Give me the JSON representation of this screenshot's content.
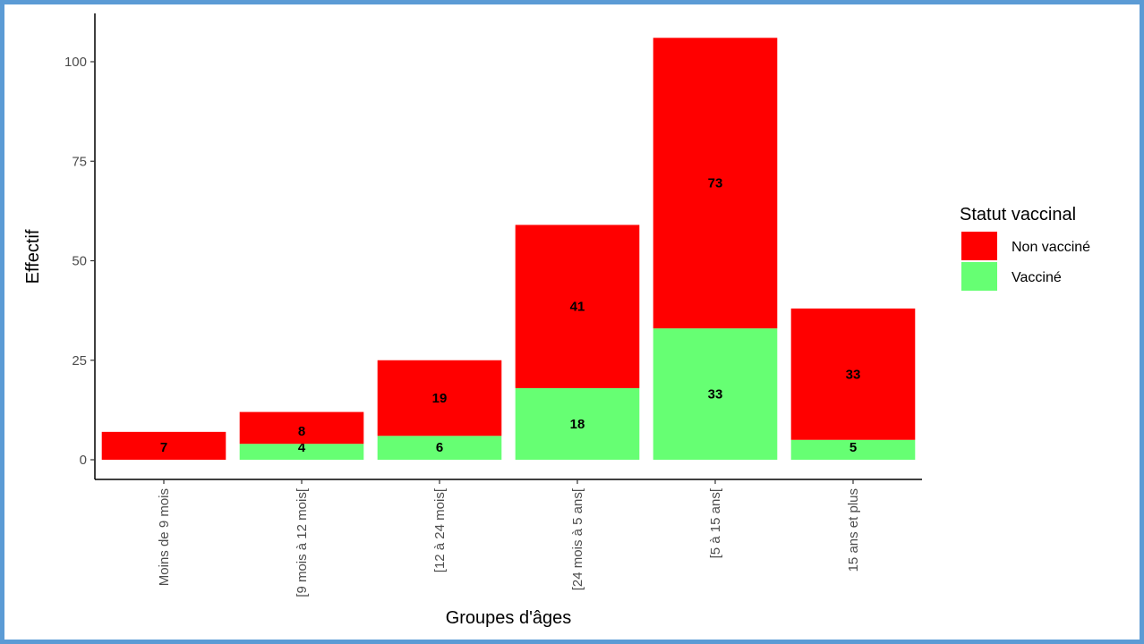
{
  "chart_data": {
    "type": "bar",
    "stacked": true,
    "title": "",
    "xlabel": "Groupes d'âges",
    "ylabel": "Effectif",
    "ylim": [
      0,
      110
    ],
    "yticks": [
      0,
      25,
      50,
      75,
      100
    ],
    "grid": false,
    "legend_position": "right",
    "legend_title": "Statut vaccinal",
    "categories": [
      "Moins de 9 mois",
      "[9 mois à 12 mois[",
      "[12 à 24 mois[",
      "[24 mois à 5 ans[",
      "[5 à 15 ans[",
      "15 ans et plus"
    ],
    "series": [
      {
        "name": "Vacciné",
        "values": [
          0,
          4,
          6,
          18,
          33,
          5
        ],
        "color": "#66ff73"
      },
      {
        "name": "Non vacciné",
        "values": [
          7,
          8,
          19,
          41,
          73,
          33
        ],
        "color": "#ff0000"
      }
    ],
    "legend_order": [
      "Non vacciné",
      "Vacciné"
    ]
  }
}
